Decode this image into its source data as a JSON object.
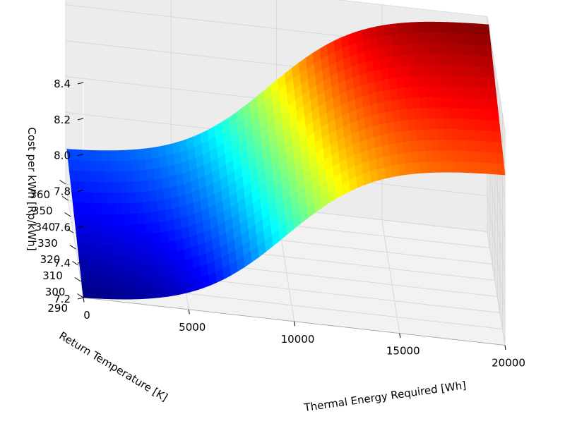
{
  "chart_data": {
    "type": "surface3d",
    "title": "",
    "xlabel": "Thermal Energy Required [Wh]",
    "ylabel": "Return Temperature [K]",
    "zlabel": "Cost per kWh [Rp/kWh]",
    "xlim": [
      0,
      20000
    ],
    "ylim": [
      290,
      360
    ],
    "zlim": [
      7.2,
      8.4
    ],
    "xticks": [
      "0",
      "5000",
      "10000",
      "15000",
      "20000"
    ],
    "yticks": [
      "290",
      "300",
      "310",
      "320",
      "330",
      "340",
      "350",
      "360"
    ],
    "zticks": [
      "7.2",
      "7.4",
      "7.6",
      "7.8",
      "8.0",
      "8.2",
      "8.4"
    ],
    "colormap": "jet",
    "grid": true,
    "surface_x_range": [
      0,
      20000
    ],
    "surface_y_range": [
      290,
      355
    ],
    "corner_values": {
      "x0_y290": 7.2,
      "x0_y355": 7.44,
      "x20000_y290": 8.15,
      "x20000_y355": 8.4
    }
  }
}
